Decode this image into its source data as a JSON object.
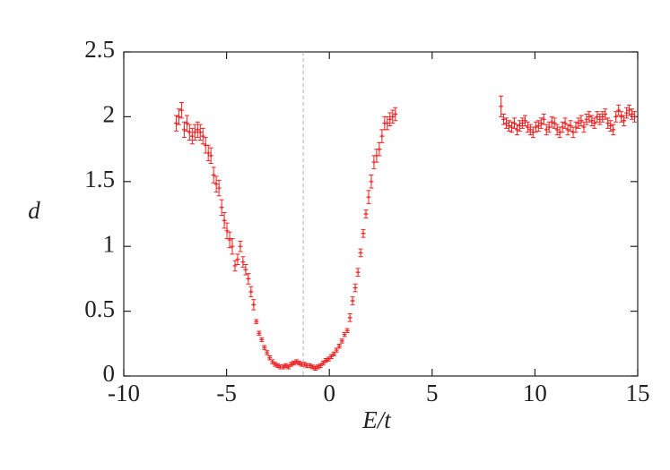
{
  "chart_data": {
    "type": "errorbar-scatter",
    "xlabel": "E/t",
    "ylabel": "d",
    "xlim": [
      -10,
      15
    ],
    "ylim": [
      0,
      2.5
    ],
    "xticks": [
      -10,
      -5,
      0,
      5,
      10,
      15
    ],
    "yticks": [
      0,
      0.5,
      1,
      1.5,
      2,
      2.5
    ],
    "color": "#ee2222",
    "vline": -1.27,
    "vline_color": "#b0b0b0",
    "x": [
      -7.45,
      -7.32,
      -7.19,
      -7.06,
      -6.93,
      -6.8,
      -6.67,
      -6.54,
      -6.41,
      -6.28,
      -6.15,
      -6.02,
      -5.89,
      -5.76,
      -5.63,
      -5.5,
      -5.37,
      -5.24,
      -5.11,
      -4.98,
      -4.85,
      -4.72,
      -4.59,
      -4.46,
      -4.33,
      -4.2,
      -4.07,
      -3.94,
      -3.81,
      -3.68,
      -3.55,
      -3.42,
      -3.29,
      -3.16,
      -3.03,
      -2.9,
      -2.77,
      -2.64,
      -2.51,
      -2.38,
      -2.25,
      -2.12,
      -1.99,
      -1.86,
      -1.73,
      -1.6,
      -1.47,
      -1.34,
      -1.21,
      -1.08,
      -0.95,
      -0.82,
      -0.69,
      -0.56,
      -0.43,
      -0.3,
      -0.17,
      -0.04,
      0.09,
      0.22,
      0.35,
      0.48,
      0.61,
      0.74,
      0.87,
      1.0,
      1.13,
      1.26,
      1.39,
      1.52,
      1.65,
      1.78,
      1.91,
      2.04,
      2.17,
      2.3,
      2.43,
      2.56,
      2.69,
      2.82,
      2.95,
      3.08,
      3.21,
      8.35,
      8.48,
      8.61,
      8.74,
      8.87,
      9.0,
      9.13,
      9.26,
      9.39,
      9.52,
      9.65,
      9.78,
      9.91,
      10.04,
      10.17,
      10.3,
      10.43,
      10.56,
      10.69,
      10.82,
      10.95,
      11.08,
      11.21,
      11.34,
      11.47,
      11.6,
      11.73,
      11.86,
      11.99,
      12.12,
      12.25,
      12.38,
      12.51,
      12.64,
      12.77,
      12.9,
      13.03,
      13.16,
      13.29,
      13.42,
      13.55,
      13.68,
      13.81,
      13.94,
      14.07,
      14.2,
      14.33,
      14.46,
      14.59,
      14.72,
      14.85
    ],
    "values": [
      1.95,
      2.0,
      2.05,
      1.9,
      1.95,
      1.88,
      1.85,
      1.88,
      1.9,
      1.88,
      1.85,
      1.78,
      1.72,
      1.7,
      1.55,
      1.48,
      1.45,
      1.3,
      1.2,
      1.12,
      1.05,
      1.0,
      0.85,
      0.9,
      1.0,
      0.88,
      0.82,
      0.75,
      0.65,
      0.55,
      0.42,
      0.33,
      0.28,
      0.22,
      0.18,
      0.14,
      0.11,
      0.09,
      0.08,
      0.07,
      0.07,
      0.08,
      0.07,
      0.09,
      0.1,
      0.11,
      0.1,
      0.09,
      0.09,
      0.08,
      0.08,
      0.07,
      0.06,
      0.07,
      0.08,
      0.1,
      0.12,
      0.13,
      0.15,
      0.17,
      0.2,
      0.23,
      0.27,
      0.32,
      0.35,
      0.45,
      0.58,
      0.68,
      0.8,
      0.95,
      1.1,
      1.25,
      1.38,
      1.5,
      1.65,
      1.7,
      1.75,
      1.85,
      1.95,
      1.95,
      1.98,
      2.0,
      2.02,
      2.08,
      1.98,
      1.95,
      1.93,
      1.92,
      1.95,
      1.9,
      1.93,
      1.95,
      1.97,
      1.92,
      1.9,
      1.88,
      1.92,
      1.93,
      1.95,
      1.98,
      1.9,
      1.92,
      1.96,
      1.95,
      1.9,
      1.88,
      1.92,
      1.95,
      1.9,
      1.93,
      1.88,
      1.92,
      1.95,
      1.97,
      1.92,
      1.98,
      2.0,
      1.97,
      1.95,
      2.0,
      1.98,
      2.0,
      2.02,
      1.95,
      1.93,
      1.9,
      2.0,
      2.05,
      2.0,
      1.97,
      2.03,
      2.05,
      2.02,
      2.0
    ],
    "errors": [
      0.06,
      0.06,
      0.06,
      0.06,
      0.06,
      0.06,
      0.06,
      0.06,
      0.06,
      0.06,
      0.06,
      0.06,
      0.06,
      0.06,
      0.06,
      0.06,
      0.06,
      0.06,
      0.06,
      0.06,
      0.06,
      0.06,
      0.04,
      0.04,
      0.04,
      0.04,
      0.04,
      0.04,
      0.04,
      0.04,
      0.015,
      0.015,
      0.015,
      0.015,
      0.015,
      0.015,
      0.015,
      0.015,
      0.015,
      0.015,
      0.015,
      0.015,
      0.015,
      0.015,
      0.015,
      0.015,
      0.015,
      0.015,
      0.015,
      0.015,
      0.015,
      0.015,
      0.015,
      0.015,
      0.015,
      0.015,
      0.015,
      0.015,
      0.015,
      0.015,
      0.015,
      0.015,
      0.015,
      0.015,
      0.015,
      0.03,
      0.03,
      0.03,
      0.03,
      0.03,
      0.03,
      0.03,
      0.05,
      0.05,
      0.05,
      0.05,
      0.05,
      0.05,
      0.05,
      0.05,
      0.05,
      0.05,
      0.05,
      0.08,
      0.04,
      0.04,
      0.04,
      0.04,
      0.04,
      0.04,
      0.04,
      0.04,
      0.04,
      0.04,
      0.04,
      0.04,
      0.04,
      0.04,
      0.04,
      0.04,
      0.04,
      0.04,
      0.04,
      0.04,
      0.04,
      0.04,
      0.04,
      0.04,
      0.04,
      0.04,
      0.04,
      0.04,
      0.04,
      0.04,
      0.04,
      0.04,
      0.04,
      0.04,
      0.04,
      0.04,
      0.04,
      0.04,
      0.04,
      0.04,
      0.04,
      0.04,
      0.04,
      0.04,
      0.04,
      0.04,
      0.04,
      0.04,
      0.04,
      0.04
    ]
  }
}
